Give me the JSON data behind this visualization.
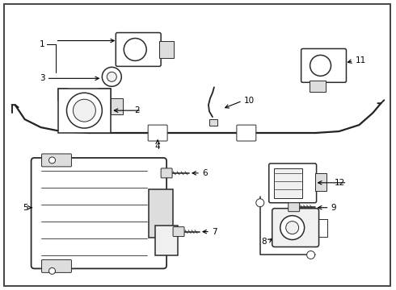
{
  "background_color": "#ffffff",
  "line_color": "#2a2a2a",
  "fig_width": 4.9,
  "fig_height": 3.6,
  "dpi": 100,
  "wire_color": "#222222",
  "part_color": "#333333",
  "fill_light": "#f0f0f0",
  "fill_mid": "#dddddd",
  "fill_dark": "#bbbbbb",
  "lw_main": 1.1,
  "lw_thin": 0.7,
  "lw_border": 1.4,
  "label_fontsize": 7.5,
  "arrow_fontsize": 6.5
}
